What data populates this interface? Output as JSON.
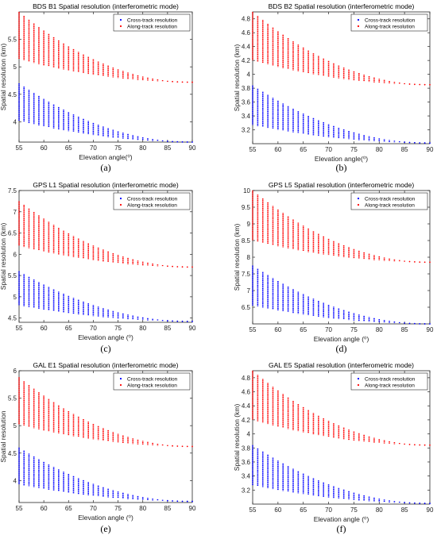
{
  "colors": {
    "cross_track": "#0000ff",
    "along_track": "#ff0000",
    "axis": "#262626"
  },
  "chart_data": [
    {
      "type": "scatter",
      "panel_label": "(a)",
      "title": "BDS B1  Spatial resolution (interferometric mode)",
      "xlabel": "Elevation angle(⁰)",
      "ylabel": "Spatial resolution (km)",
      "xlim": [
        55,
        90
      ],
      "ylim": [
        3.63,
        6.0
      ],
      "xticks": [
        55,
        60,
        65,
        70,
        75,
        80,
        85,
        90
      ],
      "yticks": [
        4,
        4.5,
        5,
        5.5
      ],
      "legend_position": "top-right",
      "series": [
        {
          "name": "Cross-track resolution",
          "color": "#0000ff",
          "x_range": [
            55,
            90
          ],
          "low": [
            4.02,
            3.63
          ],
          "high": [
            4.7,
            3.63
          ]
        },
        {
          "name": "Along-track resolution",
          "color": "#ff0000",
          "x_range": [
            55,
            90
          ],
          "low": [
            5.14,
            4.72
          ],
          "high": [
            6.0,
            4.72
          ]
        }
      ]
    },
    {
      "type": "scatter",
      "panel_label": "(b)",
      "title": "BDS B2  Spatial resolution (interferometric mode)",
      "xlabel": "Elevation angle(⁰)",
      "ylabel": "Spatial resolution (km)",
      "xlim": [
        55,
        90
      ],
      "ylim": [
        3.0,
        4.9
      ],
      "xticks": [
        55,
        60,
        65,
        70,
        75,
        80,
        85,
        90
      ],
      "yticks": [
        3.2,
        3.4,
        3.6,
        3.8,
        4,
        4.2,
        4.4,
        4.6,
        4.8
      ],
      "legend_position": "top-right",
      "series": [
        {
          "name": "Cross-track resolution",
          "color": "#0000ff",
          "x_range": [
            55,
            90
          ],
          "low": [
            3.27,
            3.01
          ],
          "high": [
            3.84,
            3.01
          ]
        },
        {
          "name": "Along-track resolution",
          "color": "#ff0000",
          "x_range": [
            55,
            90
          ],
          "low": [
            4.2,
            3.85
          ],
          "high": [
            4.9,
            3.85
          ]
        }
      ]
    },
    {
      "type": "scatter",
      "panel_label": "(c)",
      "title": "GPS L1  Spatial resolution (interferometric mode)",
      "xlabel": "Elevation angle (⁰)",
      "ylabel": "Spatial resolution (km)",
      "xlim": [
        55,
        90
      ],
      "ylim": [
        4.4,
        7.5
      ],
      "xticks": [
        55,
        60,
        65,
        70,
        75,
        80,
        85,
        90
      ],
      "yticks": [
        4.5,
        5,
        5.5,
        6,
        6.5,
        7,
        7.5
      ],
      "legend_position": "top-right",
      "series": [
        {
          "name": "Cross-track resolution",
          "color": "#0000ff",
          "x_range": [
            55,
            90
          ],
          "low": [
            4.8,
            4.42
          ],
          "high": [
            5.6,
            4.42
          ]
        },
        {
          "name": "Along-track resolution",
          "color": "#ff0000",
          "x_range": [
            55,
            90
          ],
          "low": [
            6.2,
            5.7
          ],
          "high": [
            7.25,
            5.7
          ]
        }
      ]
    },
    {
      "type": "scatter",
      "panel_label": "(d)",
      "title": "GPS L5  Spatial resolution (interferometric mode)",
      "xlabel": "Elevation angle (⁰)",
      "ylabel": "Spatial resolution (km)",
      "xlim": [
        55,
        90
      ],
      "ylim": [
        6.0,
        10.0
      ],
      "xticks": [
        55,
        60,
        65,
        70,
        75,
        80,
        85,
        90
      ],
      "yticks": [
        6.5,
        7,
        7.5,
        8,
        8.5,
        9,
        9.5,
        10
      ],
      "legend_position": "top-right",
      "series": [
        {
          "name": "Cross-track resolution",
          "color": "#0000ff",
          "x_range": [
            55,
            90
          ],
          "low": [
            6.55,
            6.0
          ],
          "high": [
            7.75,
            6.0
          ]
        },
        {
          "name": "Along-track resolution",
          "color": "#ff0000",
          "x_range": [
            55,
            90
          ],
          "low": [
            8.5,
            7.85
          ],
          "high": [
            10.0,
            7.85
          ]
        }
      ]
    },
    {
      "type": "scatter",
      "panel_label": "(e)",
      "title": "GAL E1  Spatial resolution (interferometric mode)",
      "xlabel": "Elevation angle (⁰)",
      "ylabel": "Spatial resolution",
      "xlim": [
        55,
        90
      ],
      "ylim": [
        3.6,
        6.0
      ],
      "xticks": [
        55,
        60,
        65,
        70,
        75,
        80,
        85,
        90
      ],
      "yticks": [
        4,
        4.5,
        5,
        5.5,
        6
      ],
      "legend_position": "top-right",
      "series": [
        {
          "name": "Cross-track resolution",
          "color": "#0000ff",
          "x_range": [
            55,
            90
          ],
          "low": [
            3.93,
            3.62
          ],
          "high": [
            4.6,
            3.62
          ]
        },
        {
          "name": "Along-track resolution",
          "color": "#ff0000",
          "x_range": [
            55,
            90
          ],
          "low": [
            5.02,
            4.62
          ],
          "high": [
            5.88,
            4.62
          ]
        }
      ]
    },
    {
      "type": "scatter",
      "panel_label": "(f)",
      "title": "GAL E5  Spatial resolution (interferometric mode)",
      "xlabel": "Elevation angle (⁰)",
      "ylabel": "Spatial resolution (km)",
      "xlim": [
        55,
        90
      ],
      "ylim": [
        3.0,
        4.9
      ],
      "xticks": [
        55,
        60,
        65,
        70,
        75,
        80,
        85,
        90
      ],
      "yticks": [
        3.2,
        3.4,
        3.6,
        3.8,
        4,
        4.2,
        4.4,
        4.6,
        4.8
      ],
      "legend_position": "top-right",
      "series": [
        {
          "name": "Cross-track resolution",
          "color": "#0000ff",
          "x_range": [
            55,
            90
          ],
          "low": [
            3.27,
            3.01
          ],
          "high": [
            3.84,
            3.01
          ]
        },
        {
          "name": "Along-track resolution",
          "color": "#ff0000",
          "x_range": [
            55,
            90
          ],
          "low": [
            4.2,
            3.84
          ],
          "high": [
            4.9,
            3.84
          ]
        }
      ]
    }
  ]
}
